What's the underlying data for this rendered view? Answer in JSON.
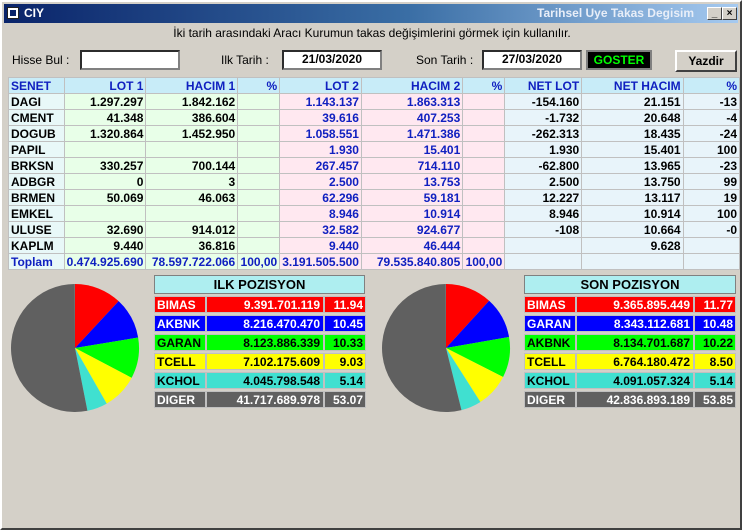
{
  "window": {
    "title": "CIY",
    "heading": "Tarihsel Uye Takas Degisim"
  },
  "info_text": "İki tarih arasındaki  Aracı Kurumun takas değişimlerini görmek için kullanılır.",
  "filters": {
    "hisse_label": "Hisse Bul :",
    "hisse_value": "",
    "ilk_label": "Ilk Tarih :",
    "ilk_value": "21/03/2020",
    "son_label": "Son Tarih :",
    "son_value": "27/03/2020",
    "goster_label": "GOSTER",
    "yazdir_label": "Yazdir"
  },
  "table": {
    "headers": [
      "SENET",
      "LOT 1",
      "HACIM 1",
      "%",
      "LOT 2",
      "HACIM 2",
      "%",
      "NET LOT",
      "NET HACIM",
      "%"
    ],
    "rows": [
      [
        "DAGI",
        "1.297.297",
        "1.842.162",
        "",
        "1.143.137",
        "1.863.313",
        "",
        "-154.160",
        "21.151",
        "-13"
      ],
      [
        "CMENT",
        "41.348",
        "386.604",
        "",
        "39.616",
        "407.253",
        "",
        "-1.732",
        "20.648",
        "-4"
      ],
      [
        "DOGUB",
        "1.320.864",
        "1.452.950",
        "",
        "1.058.551",
        "1.471.386",
        "",
        "-262.313",
        "18.435",
        "-24"
      ],
      [
        "PAPIL",
        "",
        "",
        "",
        "1.930",
        "15.401",
        "",
        "1.930",
        "15.401",
        "100"
      ],
      [
        "BRKSN",
        "330.257",
        "700.144",
        "",
        "267.457",
        "714.110",
        "",
        "-62.800",
        "13.965",
        "-23"
      ],
      [
        "ADBGR",
        "0",
        "3",
        "",
        "2.500",
        "13.753",
        "",
        "2.500",
        "13.750",
        "99"
      ],
      [
        "BRMEN",
        "50.069",
        "46.063",
        "",
        "62.296",
        "59.181",
        "",
        "12.227",
        "13.117",
        "19"
      ],
      [
        "EMKEL",
        "",
        "",
        "",
        "8.946",
        "10.914",
        "",
        "8.946",
        "10.914",
        "100"
      ],
      [
        "ULUSE",
        "32.690",
        "914.012",
        "",
        "32.582",
        "924.677",
        "",
        "-108",
        "10.664",
        "-0"
      ],
      [
        "KAPLM",
        "9.440",
        "36.816",
        "",
        "9.440",
        "46.444",
        "",
        "",
        "9.628",
        ""
      ]
    ],
    "footer": [
      "Toplam",
      "0.474.925.690",
      "78.597.722.066",
      "100,00",
      "3.191.505.500",
      "79.535.840.805",
      "100,00",
      "",
      "",
      ""
    ]
  },
  "ilk_pozisyon": {
    "title": "ILK POZISYON",
    "rows": [
      {
        "name": "BIMAS",
        "value": "9.391.701.119",
        "pct": "11.94",
        "bg": "#ff0000",
        "fg": "#ffffff"
      },
      {
        "name": "AKBNK",
        "value": "8.216.470.470",
        "pct": "10.45",
        "bg": "#0000ff",
        "fg": "#ffffff"
      },
      {
        "name": "GARAN",
        "value": "8.123.886.339",
        "pct": "10.33",
        "bg": "#00ff00",
        "fg": "#000000"
      },
      {
        "name": "TCELL",
        "value": "7.102.175.609",
        "pct": "9.03",
        "bg": "#ffff00",
        "fg": "#000000"
      },
      {
        "name": "KCHOL",
        "value": "4.045.798.548",
        "pct": "5.14",
        "bg": "#40e0d0",
        "fg": "#000000"
      },
      {
        "name": "DIGER",
        "value": "41.717.689.978",
        "pct": "53.07",
        "bg": "#606060",
        "fg": "#ffffff"
      }
    ]
  },
  "son_pozisyon": {
    "title": "SON POZISYON",
    "rows": [
      {
        "name": "BIMAS",
        "value": "9.365.895.449",
        "pct": "11.77",
        "bg": "#ff0000",
        "fg": "#ffffff"
      },
      {
        "name": "GARAN",
        "value": "8.343.112.681",
        "pct": "10.48",
        "bg": "#0000ff",
        "fg": "#ffffff"
      },
      {
        "name": "AKBNK",
        "value": "8.134.701.687",
        "pct": "10.22",
        "bg": "#00ff00",
        "fg": "#000000"
      },
      {
        "name": "TCELL",
        "value": "6.764.180.472",
        "pct": "8.50",
        "bg": "#ffff00",
        "fg": "#000000"
      },
      {
        "name": "KCHOL",
        "value": "4.091.057.324",
        "pct": "5.14",
        "bg": "#40e0d0",
        "fg": "#000000"
      },
      {
        "name": "DIGER",
        "value": "42.836.893.189",
        "pct": "53.85",
        "bg": "#606060",
        "fg": "#ffffff"
      }
    ]
  }
}
